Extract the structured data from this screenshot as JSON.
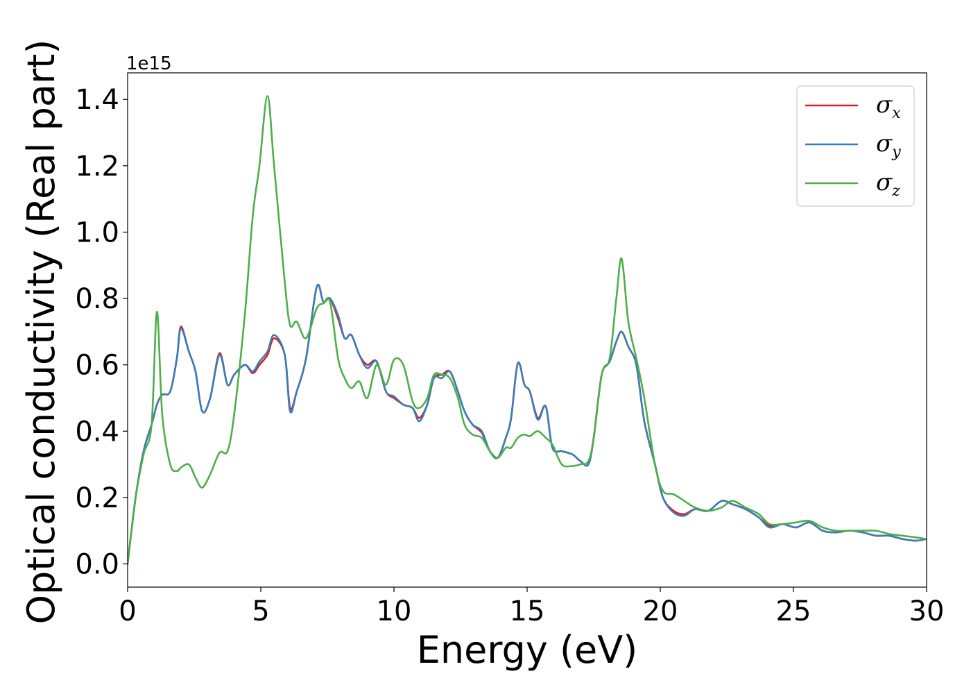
{
  "chart_data": {
    "type": "line",
    "xlabel": "Energy (eV)",
    "ylabel": "Optical conductivity (Real part)",
    "y_offset_label": "1e15",
    "xlim": [
      0,
      30
    ],
    "ylim": [
      -0.07,
      1.48
    ],
    "x_ticks": [
      0,
      5,
      10,
      15,
      20,
      25,
      30
    ],
    "x_tick_labels": [
      "0",
      "5",
      "10",
      "15",
      "20",
      "25",
      "30"
    ],
    "y_ticks": [
      0.0,
      0.2,
      0.4,
      0.6,
      0.8,
      1.0,
      1.2,
      1.4
    ],
    "y_tick_labels": [
      "0.0",
      "0.2",
      "0.4",
      "0.6",
      "0.8",
      "1.0",
      "1.2",
      "1.4"
    ],
    "grid": false,
    "legend_position": "top-right",
    "x": [
      0.0,
      0.3,
      0.6,
      0.9,
      1.1,
      1.3,
      1.6,
      1.85,
      2.0,
      2.3,
      2.55,
      2.8,
      3.1,
      3.45,
      3.75,
      4.0,
      4.4,
      4.7,
      4.95,
      5.25,
      5.5,
      5.9,
      6.1,
      6.35,
      6.7,
      7.1,
      7.35,
      7.6,
      7.9,
      8.15,
      8.4,
      8.7,
      9.0,
      9.35,
      9.7,
      10.0,
      10.35,
      10.7,
      10.95,
      11.25,
      11.5,
      11.8,
      12.1,
      12.4,
      12.65,
      12.95,
      13.3,
      13.6,
      13.9,
      14.2,
      14.4,
      14.65,
      14.9,
      15.1,
      15.4,
      15.7,
      15.95,
      16.3,
      16.7,
      17.0,
      17.3,
      17.5,
      17.8,
      18.1,
      18.35,
      18.55,
      18.8,
      19.1,
      19.4,
      19.8,
      20.1,
      20.5,
      20.9,
      21.3,
      21.8,
      22.3,
      22.7,
      23.2,
      23.7,
      24.1,
      24.6,
      25.1,
      25.6,
      26.1,
      26.6,
      27.1,
      27.6,
      28.1,
      28.6,
      29.1,
      29.6,
      30.0
    ],
    "series": [
      {
        "name": "σx",
        "label_base": "σ",
        "label_sub": "x",
        "color": "#e41a1c",
        "values": [
          0.0,
          0.2,
          0.34,
          0.42,
          0.48,
          0.51,
          0.52,
          0.62,
          0.715,
          0.64,
          0.58,
          0.46,
          0.5,
          0.635,
          0.54,
          0.57,
          0.6,
          0.575,
          0.6,
          0.63,
          0.68,
          0.63,
          0.47,
          0.52,
          0.62,
          0.835,
          0.79,
          0.8,
          0.74,
          0.68,
          0.69,
          0.63,
          0.6,
          0.61,
          0.52,
          0.5,
          0.48,
          0.47,
          0.44,
          0.48,
          0.56,
          0.57,
          0.58,
          0.52,
          0.46,
          0.42,
          0.395,
          0.34,
          0.32,
          0.38,
          0.44,
          0.605,
          0.54,
          0.52,
          0.44,
          0.475,
          0.35,
          0.34,
          0.33,
          0.31,
          0.3,
          0.38,
          0.57,
          0.61,
          0.67,
          0.7,
          0.655,
          0.6,
          0.43,
          0.3,
          0.2,
          0.16,
          0.15,
          0.165,
          0.16,
          0.19,
          0.18,
          0.165,
          0.14,
          0.115,
          0.12,
          0.11,
          0.125,
          0.1,
          0.095,
          0.1,
          0.095,
          0.085,
          0.085,
          0.075,
          0.07,
          0.075
        ]
      },
      {
        "name": "σy",
        "label_base": "σ",
        "label_sub": "y",
        "color": "#377eb8",
        "values": [
          0.0,
          0.2,
          0.34,
          0.42,
          0.48,
          0.51,
          0.52,
          0.62,
          0.71,
          0.64,
          0.58,
          0.46,
          0.5,
          0.63,
          0.54,
          0.57,
          0.6,
          0.58,
          0.61,
          0.64,
          0.69,
          0.63,
          0.46,
          0.52,
          0.62,
          0.835,
          0.79,
          0.8,
          0.75,
          0.68,
          0.69,
          0.63,
          0.59,
          0.61,
          0.52,
          0.505,
          0.48,
          0.47,
          0.43,
          0.48,
          0.56,
          0.56,
          0.58,
          0.52,
          0.46,
          0.42,
          0.4,
          0.34,
          0.32,
          0.38,
          0.44,
          0.605,
          0.54,
          0.52,
          0.435,
          0.475,
          0.35,
          0.34,
          0.33,
          0.31,
          0.3,
          0.38,
          0.57,
          0.61,
          0.67,
          0.7,
          0.655,
          0.6,
          0.43,
          0.3,
          0.2,
          0.155,
          0.145,
          0.165,
          0.16,
          0.19,
          0.18,
          0.165,
          0.14,
          0.11,
          0.12,
          0.11,
          0.125,
          0.1,
          0.095,
          0.1,
          0.095,
          0.085,
          0.085,
          0.075,
          0.07,
          0.075
        ]
      },
      {
        "name": "σz",
        "label_base": "σ",
        "label_sub": "z",
        "color": "#4daf4a",
        "values": [
          0.0,
          0.2,
          0.33,
          0.42,
          0.76,
          0.45,
          0.3,
          0.28,
          0.29,
          0.3,
          0.26,
          0.23,
          0.27,
          0.335,
          0.34,
          0.45,
          0.75,
          1.05,
          1.2,
          1.41,
          1.2,
          0.85,
          0.72,
          0.73,
          0.68,
          0.77,
          0.785,
          0.79,
          0.62,
          0.56,
          0.53,
          0.55,
          0.5,
          0.6,
          0.54,
          0.615,
          0.6,
          0.49,
          0.47,
          0.5,
          0.57,
          0.57,
          0.56,
          0.5,
          0.42,
          0.39,
          0.38,
          0.34,
          0.32,
          0.35,
          0.35,
          0.38,
          0.39,
          0.385,
          0.4,
          0.38,
          0.36,
          0.3,
          0.295,
          0.3,
          0.31,
          0.38,
          0.57,
          0.62,
          0.8,
          0.92,
          0.73,
          0.62,
          0.5,
          0.3,
          0.22,
          0.21,
          0.19,
          0.17,
          0.16,
          0.17,
          0.19,
          0.17,
          0.15,
          0.12,
          0.12,
          0.125,
          0.13,
          0.11,
          0.1,
          0.1,
          0.1,
          0.1,
          0.09,
          0.085,
          0.08,
          0.075
        ]
      }
    ]
  }
}
